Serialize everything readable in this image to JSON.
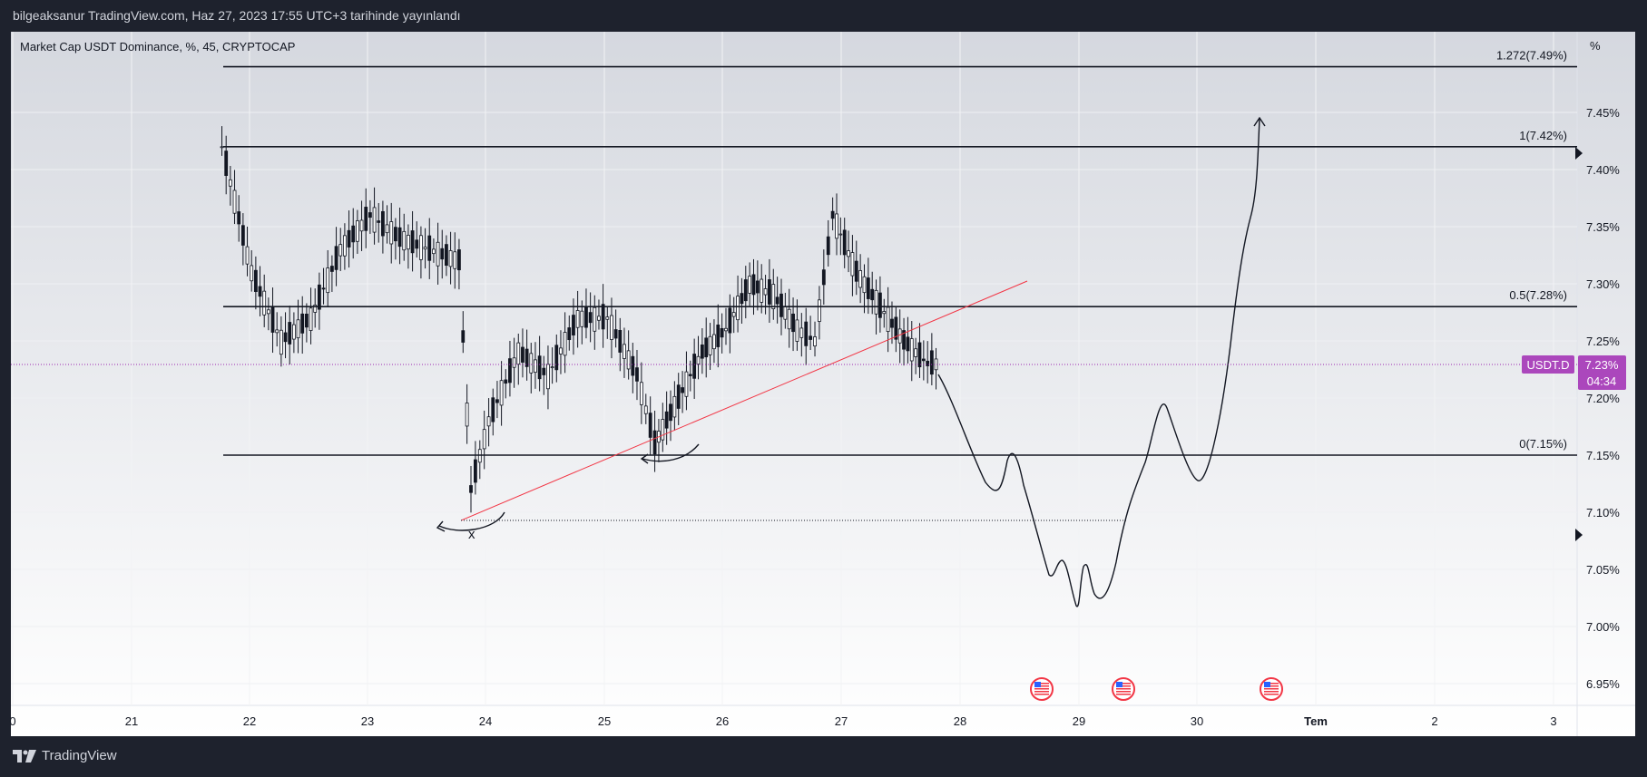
{
  "header": {
    "published": "bilgeaksanur TradingView.com, Haz 27, 2023 17:55 UTC+3 tarihinde yayınlandı"
  },
  "symbol": {
    "title": "Market Cap USDT Dominance, %, 45, CRYPTOCAP"
  },
  "price_axis": {
    "unit": "%",
    "ticks": [
      "7.45%",
      "7.40%",
      "7.35%",
      "7.30%",
      "7.25%",
      "7.20%",
      "7.15%",
      "7.10%",
      "7.05%",
      "7.00%",
      "6.95%"
    ]
  },
  "time_axis": {
    "ticks": [
      "0",
      "21",
      "22",
      "23",
      "24",
      "25",
      "26",
      "27",
      "28",
      "29",
      "30",
      "Tem",
      "2",
      "3"
    ]
  },
  "fib_levels": [
    {
      "label": "1.272(7.49%)",
      "value": 7.49
    },
    {
      "label": "1(7.42%)",
      "value": 7.42
    },
    {
      "label": "0.5(7.28%)",
      "value": 7.28
    },
    {
      "label": "0(7.15%)",
      "value": 7.15
    }
  ],
  "last_price": {
    "symbol": "USDT.D",
    "price": "7.23%",
    "countdown": "04:34"
  },
  "annotation": {
    "mark": "x"
  },
  "footer": {
    "brand": "TradingView"
  },
  "colors": {
    "background": "#1e222d",
    "price_badge": "#ab47bc",
    "trendline": "#f23645",
    "candle": "#131722"
  },
  "chart_data": {
    "type": "line",
    "title": "Market Cap USDT Dominance, %, 45, CRYPTOCAP",
    "ylabel": "%",
    "ylim": [
      6.93,
      7.51
    ],
    "series": [
      {
        "name": "USDT.D",
        "x": [
          "21.75",
          "22.0",
          "22.25",
          "22.5",
          "22.75",
          "23.0",
          "23.25",
          "23.5",
          "23.75",
          "23.85",
          "24.0",
          "24.25",
          "24.5",
          "24.75",
          "25.0",
          "25.25",
          "25.4",
          "25.6",
          "25.8",
          "26.0",
          "26.2",
          "26.4",
          "26.6",
          "26.75",
          "26.9",
          "27.1",
          "27.3",
          "27.5",
          "27.7"
        ],
        "values": [
          7.42,
          7.31,
          7.25,
          7.27,
          7.33,
          7.36,
          7.34,
          7.33,
          7.32,
          7.12,
          7.18,
          7.24,
          7.22,
          7.27,
          7.27,
          7.22,
          7.16,
          7.2,
          7.24,
          7.26,
          7.3,
          7.29,
          7.26,
          7.25,
          7.36,
          7.31,
          7.28,
          7.25,
          7.23
        ]
      }
    ]
  }
}
